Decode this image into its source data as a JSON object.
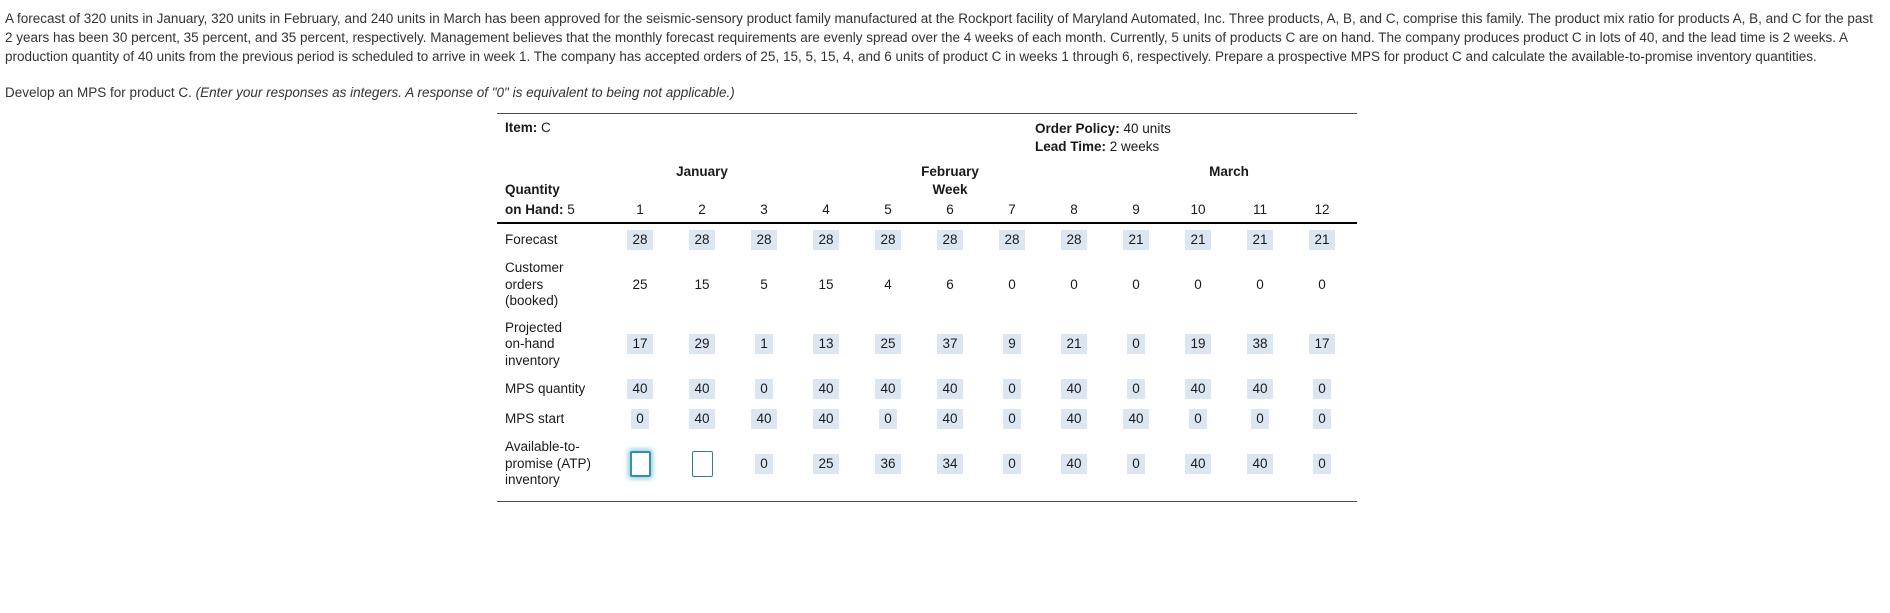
{
  "problem": {
    "statement": "A forecast of 320 units in January, 320 units in February, and 240 units in March has been approved for the seismic-sensory product family manufactured at the Rockport facility of Maryland Automated, Inc. Three products, A, B, and C, comprise this family. The product mix ratio for products A, B, and C for the past 2 years has been 30 percent, 35 percent, and 35 percent, respectively. Management believes that the monthly forecast requirements are evenly spread over the 4 weeks of each month. Currently, 5 units of products C are on hand. The company produces product C in lots of 40, and the lead time is 2 weeks. A production quantity of 40 units from the previous period is scheduled to arrive in week 1. The company has accepted orders of 25, 15, 5, 15, 4, and 6 units of product C in weeks 1 through 6, respectively. Prepare a prospective MPS for product C and calculate the available-to-promise inventory quantities.",
    "instruction": "Develop an MPS for product C. ",
    "instruction_note": "(Enter your responses as integers. A response of \"0\" is equivalent to being not applicable.)"
  },
  "mps": {
    "item_label": "Item:",
    "item_value": " C",
    "order_policy_label": "Order Policy:",
    "order_policy_value": " 40 units",
    "lead_time_label": "Lead Time:",
    "lead_time_value": " 2 weeks",
    "months": {
      "january": "January",
      "february": "February",
      "march": "March"
    },
    "week_header": "Week",
    "quantity_label": "Quantity",
    "on_hand_label": "on Hand:",
    "on_hand_value": " 5",
    "week_numbers": [
      "1",
      "2",
      "3",
      "4",
      "5",
      "6",
      "7",
      "8",
      "9",
      "10",
      "11",
      "12"
    ],
    "rows": [
      {
        "name": "forecast",
        "label_lines": [
          "Forecast"
        ],
        "highlighted": true,
        "values": [
          "28",
          "28",
          "28",
          "28",
          "28",
          "28",
          "28",
          "28",
          "21",
          "21",
          "21",
          "21"
        ]
      },
      {
        "name": "customer-orders",
        "label_lines": [
          "Customer",
          "orders",
          "(booked)"
        ],
        "highlighted": false,
        "values": [
          "25",
          "15",
          "5",
          "15",
          "4",
          "6",
          "0",
          "0",
          "0",
          "0",
          "0",
          "0"
        ]
      },
      {
        "name": "projected-on-hand-inventory",
        "label_lines": [
          "Projected",
          "on-hand",
          "inventory"
        ],
        "highlighted": true,
        "values": [
          "17",
          "29",
          "1",
          "13",
          "25",
          "37",
          "9",
          "21",
          "0",
          "19",
          "38",
          "17"
        ]
      },
      {
        "name": "mps-quantity",
        "label_lines": [
          "MPS quantity"
        ],
        "highlighted": true,
        "values": [
          "40",
          "40",
          "0",
          "40",
          "40",
          "40",
          "0",
          "40",
          "0",
          "40",
          "40",
          "0"
        ]
      },
      {
        "name": "mps-start",
        "label_lines": [
          "MPS start"
        ],
        "highlighted": true,
        "values": [
          "0",
          "40",
          "40",
          "40",
          "0",
          "40",
          "0",
          "40",
          "40",
          "0",
          "0",
          "0"
        ]
      },
      {
        "name": "atp-inventory",
        "label_lines": [
          "Available-to-",
          "promise (ATP)",
          "inventory"
        ],
        "highlighted": true,
        "values": [
          "",
          "",
          "0",
          "25",
          "36",
          "34",
          "0",
          "40",
          "0",
          "40",
          "40",
          "0"
        ],
        "input_cells": [
          0,
          1
        ],
        "focused_cell": 0
      }
    ]
  }
}
